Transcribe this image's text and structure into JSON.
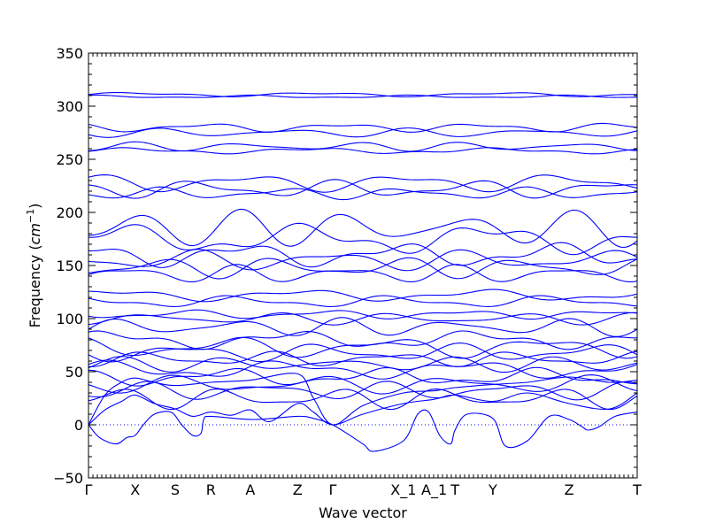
{
  "chart_data": {
    "type": "line",
    "xlabel": "Wave vector",
    "ylabel_text": "Frequency (",
    "ylabel_unit_base": "cm",
    "ylabel_unit_exp": "−1",
    "ylabel_close": ")",
    "ylim": [
      -50,
      350
    ],
    "yticks": [
      -50,
      0,
      50,
      100,
      150,
      200,
      250,
      300,
      350
    ],
    "ytick_labels": [
      "−50",
      "0",
      "50",
      "100",
      "150",
      "200",
      "250",
      "300",
      "350"
    ],
    "xlim": [
      0,
      1
    ],
    "xticks": [
      {
        "label": "Γ",
        "x": 0.0
      },
      {
        "label": "X",
        "x": 0.085
      },
      {
        "label": "S",
        "x": 0.158
      },
      {
        "label": "R",
        "x": 0.223
      },
      {
        "label": "A",
        "x": 0.295
      },
      {
        "label": "Z",
        "x": 0.381
      },
      {
        "label": "Γ",
        "x": 0.445
      },
      {
        "label": "X_1",
        "x": 0.574
      },
      {
        "label": "A_1",
        "x": 0.63
      },
      {
        "label": "T",
        "x": 0.668
      },
      {
        "label": "Y",
        "x": 0.737
      },
      {
        "label": "Z",
        "x": 0.876
      },
      {
        "label": "T",
        "x": 1.0
      }
    ],
    "grid": false,
    "line_color": "#0000ff",
    "zero_line_color": "#0000ff",
    "flat_bands": [
      {
        "base": 311,
        "amp": 1.5
      },
      {
        "base": 309,
        "amp": 1.0
      },
      {
        "base": 280,
        "amp": 3
      },
      {
        "base": 275,
        "amp": 3
      },
      {
        "base": 262,
        "amp": 3
      },
      {
        "base": 258,
        "amp": 2
      },
      {
        "base": 228,
        "amp": 6
      },
      {
        "base": 222,
        "amp": 6
      },
      {
        "base": 218,
        "amp": 4
      },
      {
        "base": 185,
        "amp": 12
      },
      {
        "base": 175,
        "amp": 10
      },
      {
        "base": 160,
        "amp": 8
      },
      {
        "base": 155,
        "amp": 7
      },
      {
        "base": 148,
        "amp": 7
      },
      {
        "base": 142,
        "amp": 6
      },
      {
        "base": 122,
        "amp": 4
      },
      {
        "base": 116,
        "amp": 4
      },
      {
        "base": 104,
        "amp": 3
      },
      {
        "base": 100,
        "amp": 4
      },
      {
        "base": 92,
        "amp": 6
      },
      {
        "base": 80,
        "amp": 6
      },
      {
        "base": 73,
        "amp": 7
      },
      {
        "base": 68,
        "amp": 6
      },
      {
        "base": 62,
        "amp": 5
      },
      {
        "base": 57,
        "amp": 5
      },
      {
        "base": 52,
        "amp": 6
      },
      {
        "base": 45,
        "amp": 6
      },
      {
        "base": 38,
        "amp": 6
      },
      {
        "base": 32,
        "amp": 6
      },
      {
        "base": 25,
        "amp": 7
      }
    ],
    "acoustic_bands": [
      {
        "points": [
          [
            0.0,
            0
          ],
          [
            0.03,
            28
          ],
          [
            0.06,
            40
          ],
          [
            0.085,
            44
          ],
          [
            0.12,
            40
          ],
          [
            0.158,
            37
          ],
          [
            0.223,
            40
          ],
          [
            0.295,
            42
          ],
          [
            0.381,
            48
          ],
          [
            0.41,
            25
          ],
          [
            0.445,
            0
          ],
          [
            0.5,
            18
          ],
          [
            0.574,
            30
          ],
          [
            0.63,
            32
          ],
          [
            0.668,
            35
          ],
          [
            0.737,
            38
          ],
          [
            0.8,
            40
          ],
          [
            0.876,
            45
          ],
          [
            0.95,
            40
          ],
          [
            1.0,
            42
          ]
        ]
      },
      {
        "points": [
          [
            0.0,
            0
          ],
          [
            0.03,
            14
          ],
          [
            0.06,
            22
          ],
          [
            0.085,
            28
          ],
          [
            0.12,
            20
          ],
          [
            0.158,
            15
          ],
          [
            0.19,
            8
          ],
          [
            0.223,
            12
          ],
          [
            0.26,
            9
          ],
          [
            0.295,
            14
          ],
          [
            0.33,
            3
          ],
          [
            0.381,
            20
          ],
          [
            0.41,
            12
          ],
          [
            0.445,
            0
          ],
          [
            0.5,
            10
          ],
          [
            0.574,
            20
          ],
          [
            0.63,
            24
          ],
          [
            0.668,
            28
          ],
          [
            0.737,
            22
          ],
          [
            0.8,
            30
          ],
          [
            0.876,
            20
          ],
          [
            0.95,
            15
          ],
          [
            1.0,
            30
          ]
        ]
      },
      {
        "points": [
          [
            0.0,
            0
          ],
          [
            0.02,
            -12
          ],
          [
            0.05,
            -18
          ],
          [
            0.07,
            -12
          ],
          [
            0.085,
            -10
          ],
          [
            0.1,
            0
          ],
          [
            0.12,
            10
          ],
          [
            0.15,
            12
          ],
          [
            0.17,
            0
          ],
          [
            0.19,
            -10
          ],
          [
            0.205,
            -8
          ],
          [
            0.21,
            5
          ],
          [
            0.223,
            8
          ],
          [
            0.3,
            5
          ],
          [
            0.381,
            8
          ],
          [
            0.41,
            6
          ],
          [
            0.445,
            0
          ],
          [
            0.5,
            -18
          ],
          [
            0.52,
            -25
          ],
          [
            0.574,
            -15
          ],
          [
            0.6,
            10
          ],
          [
            0.62,
            12
          ],
          [
            0.64,
            -10
          ],
          [
            0.66,
            -18
          ],
          [
            0.668,
            -5
          ],
          [
            0.69,
            10
          ],
          [
            0.737,
            6
          ],
          [
            0.76,
            -20
          ],
          [
            0.8,
            -15
          ],
          [
            0.84,
            8
          ],
          [
            0.876,
            5
          ],
          [
            0.9,
            -2
          ],
          [
            0.91,
            -5
          ],
          [
            0.93,
            -2
          ],
          [
            0.96,
            8
          ],
          [
            1.0,
            12
          ]
        ]
      }
    ]
  }
}
